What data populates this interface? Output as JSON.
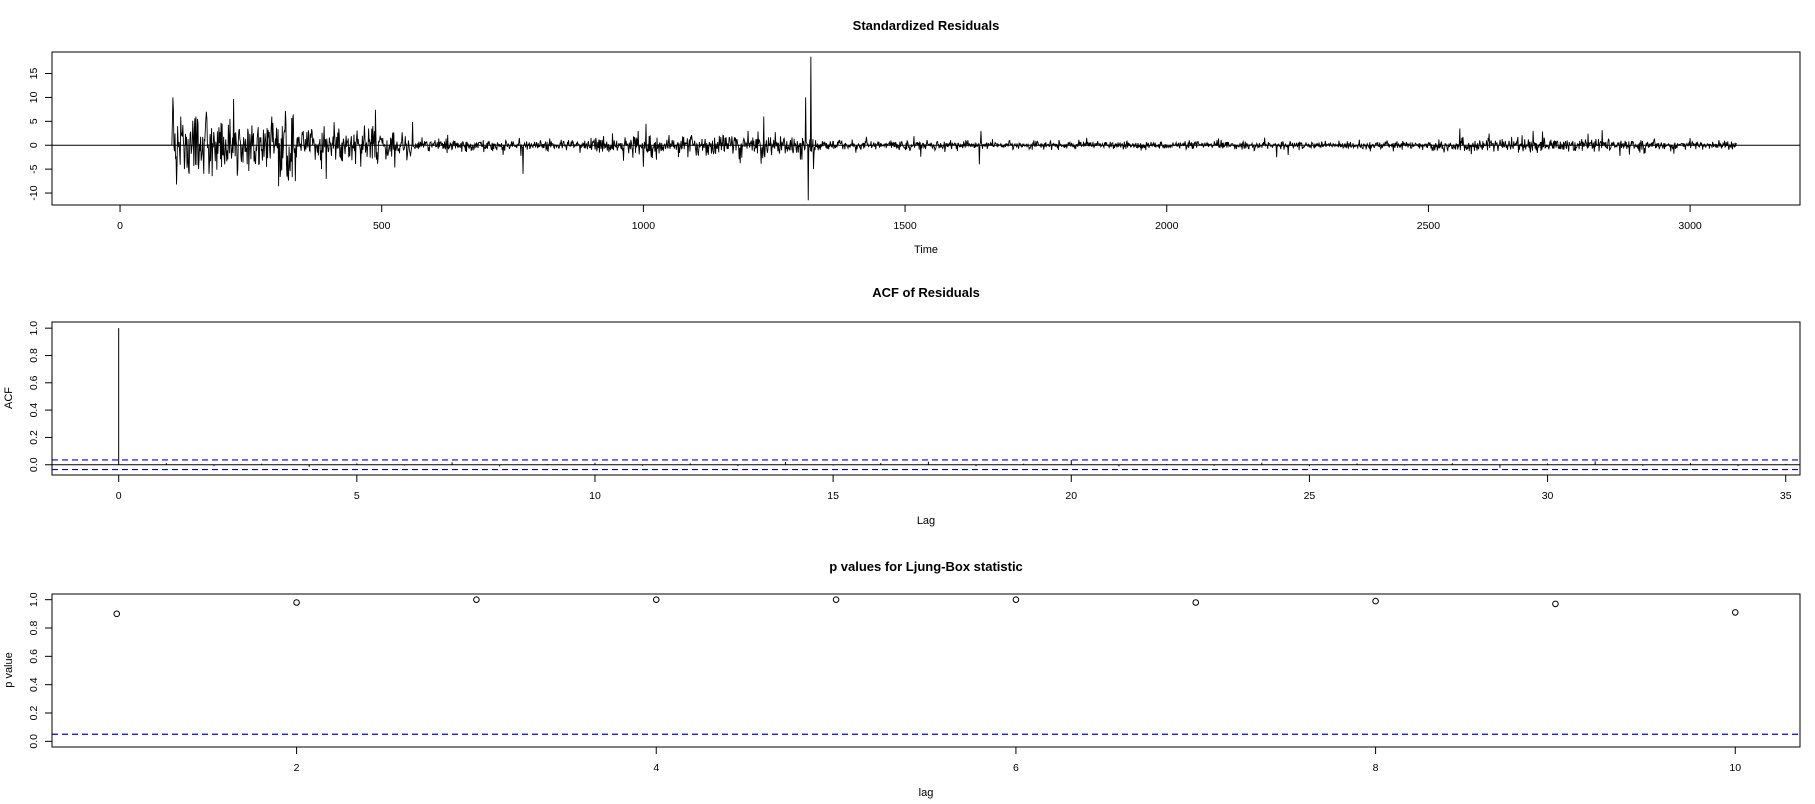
{
  "chart_data": [
    {
      "type": "line",
      "title": "Standardized Residuals",
      "xlabel": "Time",
      "ylabel": "",
      "xlim": [
        -130,
        3210
      ],
      "ylim": [
        -12.5,
        19.5
      ],
      "xticks": [
        0,
        500,
        1000,
        1500,
        2000,
        2500,
        3000
      ],
      "yticks": [
        -10,
        -5,
        0,
        5,
        10,
        15
      ],
      "n": 3090,
      "baseline": 0,
      "grid": false,
      "legend": "none",
      "color": "#000000",
      "segments": [
        {
          "x": [
            0,
            100
          ],
          "amp": 0
        },
        {
          "x": [
            100,
            340
          ],
          "amp": 3.2
        },
        {
          "x": [
            340,
            560
          ],
          "amp": 1.5
        },
        {
          "x": [
            560,
            900
          ],
          "amp": 0.55
        },
        {
          "x": [
            900,
            1100
          ],
          "amp": 0.9
        },
        {
          "x": [
            1100,
            1330
          ],
          "amp": 1.2
        },
        {
          "x": [
            1330,
            1620
          ],
          "amp": 0.5
        },
        {
          "x": [
            1620,
            2500
          ],
          "amp": 0.38
        },
        {
          "x": [
            2500,
            2850
          ],
          "amp": 0.7
        },
        {
          "x": [
            2850,
            3090
          ],
          "amp": 0.45
        }
      ],
      "spikes": [
        {
          "x": 101,
          "y": 10
        },
        {
          "x": 110,
          "y": 4
        },
        {
          "x": 116,
          "y": 6
        },
        {
          "x": 123,
          "y": -5
        },
        {
          "x": 132,
          "y": -6
        },
        {
          "x": 145,
          "y": 6
        },
        {
          "x": 150,
          "y": -5
        },
        {
          "x": 160,
          "y": -6
        },
        {
          "x": 165,
          "y": 7
        },
        {
          "x": 170,
          "y": -6
        },
        {
          "x": 195,
          "y": 4.5
        },
        {
          "x": 200,
          "y": -4
        },
        {
          "x": 210,
          "y": 5.5
        },
        {
          "x": 265,
          "y": -4
        },
        {
          "x": 290,
          "y": 6
        },
        {
          "x": 310,
          "y": 4
        },
        {
          "x": 335,
          "y": -7.5
        },
        {
          "x": 350,
          "y": 3
        },
        {
          "x": 385,
          "y": -5
        },
        {
          "x": 390,
          "y": 4
        },
        {
          "x": 460,
          "y": -4.5
        },
        {
          "x": 475,
          "y": 3.5
        },
        {
          "x": 490,
          "y": -3
        },
        {
          "x": 770,
          "y": -6
        },
        {
          "x": 990,
          "y": 3
        },
        {
          "x": 1000,
          "y": -4.5
        },
        {
          "x": 1005,
          "y": 4.5
        },
        {
          "x": 1085,
          "y": -2.5
        },
        {
          "x": 1200,
          "y": 3
        },
        {
          "x": 1230,
          "y": 6
        },
        {
          "x": 1300,
          "y": -3
        },
        {
          "x": 1310,
          "y": 10
        },
        {
          "x": 1315,
          "y": -11.5
        },
        {
          "x": 1320,
          "y": 18.5
        },
        {
          "x": 1325,
          "y": -5
        },
        {
          "x": 1642,
          "y": -4
        },
        {
          "x": 1645,
          "y": 3
        },
        {
          "x": 2210,
          "y": -2.5
        },
        {
          "x": 2560,
          "y": 3.5
        },
        {
          "x": 2700,
          "y": 3
        }
      ]
    },
    {
      "type": "bar",
      "title": "ACF of Residuals",
      "xlabel": "Lag",
      "ylabel": "ACF",
      "xlim": [
        -1.4,
        35.3
      ],
      "ylim": [
        -0.075,
        1.045
      ],
      "xticks": [
        0,
        5,
        10,
        15,
        20,
        25,
        30,
        35
      ],
      "yticks": [
        0.0,
        0.2,
        0.4,
        0.6,
        0.8,
        1.0
      ],
      "ytick_labels": [
        "0.0",
        "0.2",
        "0.4",
        "0.6",
        "0.8",
        "1.0"
      ],
      "x": [
        0,
        1,
        2,
        3,
        4,
        5,
        6,
        7,
        8,
        9,
        10,
        11,
        12,
        13,
        14,
        15,
        16,
        17,
        18,
        19,
        20,
        21,
        22,
        23,
        24,
        25,
        26,
        27,
        28,
        29,
        30,
        31,
        32,
        33,
        34,
        35
      ],
      "values": [
        1.0,
        0.012,
        -0.01,
        0.008,
        -0.015,
        0.01,
        -0.006,
        0.018,
        -0.012,
        0.005,
        0.014,
        -0.008,
        0.01,
        -0.01,
        0.02,
        -0.005,
        0.012,
        0.022,
        -0.01,
        0.008,
        0.035,
        -0.012,
        0.006,
        -0.008,
        0.015,
        -0.01,
        0.01,
        -0.006,
        0.012,
        -0.022,
        0.01,
        0.025,
        -0.008,
        0.012,
        -0.01,
        0.006
      ],
      "ci_bounds": [
        -0.0352,
        0.0352
      ],
      "ci_color": "#0000ff",
      "grid": false,
      "legend": "none"
    },
    {
      "type": "scatter",
      "title": "p values for Ljung-Box statistic",
      "xlabel": "lag",
      "ylabel": "p value",
      "xlim": [
        0.64,
        10.36
      ],
      "ylim": [
        -0.04,
        1.04
      ],
      "xticks": [
        2,
        4,
        6,
        8,
        10
      ],
      "yticks": [
        0.0,
        0.2,
        0.4,
        0.6,
        0.8,
        1.0
      ],
      "ytick_labels": [
        "0.0",
        "0.2",
        "0.4",
        "0.6",
        "0.8",
        "1.0"
      ],
      "x": [
        1,
        2,
        3,
        4,
        5,
        6,
        7,
        8,
        9,
        10
      ],
      "values": [
        0.9,
        0.98,
        1.0,
        1.0,
        1.0,
        1.0,
        0.98,
        0.99,
        0.97,
        0.91
      ],
      "reference_line": 0.05,
      "ref_color": "#0000ff",
      "grid": false,
      "legend": "none"
    }
  ]
}
